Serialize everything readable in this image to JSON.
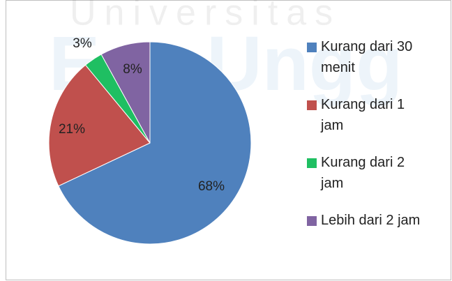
{
  "chart_data": {
    "type": "pie",
    "watermark": [
      "Universitas",
      "Esa Ungg"
    ],
    "categories": [
      "Kurang dari 30 menit",
      "Kurang dari 1 jam",
      "Kurang dari 2 jam",
      "Lebih dari 2 jam"
    ],
    "values": [
      68,
      21,
      3,
      8
    ],
    "value_labels": [
      "68%",
      "21%",
      "3%",
      "8%"
    ],
    "colors": [
      "#4f81bd",
      "#c0504d",
      "#1fbf62",
      "#8064a2"
    ],
    "legend": "right"
  }
}
